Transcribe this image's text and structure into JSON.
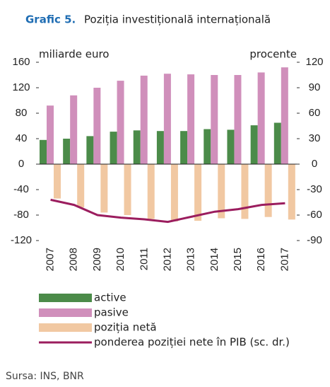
{
  "chart_data": {
    "type": "bar_line",
    "title_label": "Grafic 5.",
    "title": "Poziția investițională internațională",
    "y_label": "miliarde euro",
    "y2_label": "procente",
    "source": "Sursa: INS, BNR",
    "categories": [
      "2007",
      "2008",
      "2009",
      "2010",
      "2011",
      "2012",
      "2013",
      "2014",
      "2015",
      "2016",
      "2017"
    ],
    "series": [
      {
        "name": "active",
        "color": "#4b8b49",
        "kind": "bar",
        "values": [
          38,
          40,
          44,
          51,
          53,
          52,
          52,
          55,
          54,
          61,
          65
        ]
      },
      {
        "name": "pasive",
        "color": "#d08fbb",
        "kind": "bar",
        "values": [
          92,
          108,
          120,
          131,
          139,
          142,
          141,
          140,
          140,
          144,
          152
        ]
      },
      {
        "name": "poziția netă",
        "color": "#f1c8a2",
        "kind": "bar",
        "values": [
          -54,
          -68,
          -76,
          -80,
          -86,
          -90,
          -89,
          -85,
          -86,
          -83,
          -87
        ]
      },
      {
        "name": "ponderea poziției nete în PIB (sc. dr.)",
        "color": "#9b1d5e",
        "kind": "line",
        "axis": "y2",
        "values": [
          -42,
          -48,
          -60,
          -63,
          -65,
          -68,
          -62,
          -56,
          -53,
          -48,
          -46
        ]
      }
    ],
    "ylim": [
      -120,
      160
    ],
    "yticks": [
      -120,
      -80,
      -40,
      0,
      40,
      80,
      120,
      160
    ],
    "y2lim": [
      -90,
      120
    ],
    "y2ticks": [
      -90,
      -60,
      -30,
      0,
      30,
      60,
      90,
      120
    ]
  }
}
